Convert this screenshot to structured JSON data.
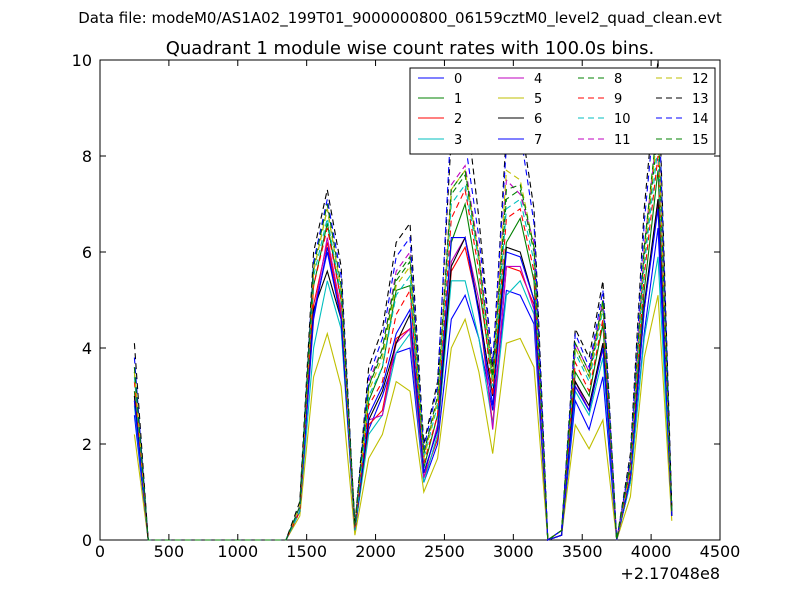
{
  "header": {
    "data_file": "Data file: modeM0/AS1A02_199T01_9000000800_06159cztM0_level2_quad_clean.evt"
  },
  "chart_data": {
    "type": "line",
    "title": "Quadrant 1 module wise count rates with 100.0s bins.",
    "xlabel": "",
    "ylabel": "",
    "x_offset_label": "+2.17048e8",
    "xlim": [
      0,
      4500
    ],
    "ylim": [
      0,
      10
    ],
    "xticks": [
      "0",
      "500",
      "1000",
      "1500",
      "2000",
      "2500",
      "3000",
      "3500",
      "4000",
      "4500"
    ],
    "yticks": [
      "0",
      "2",
      "4",
      "6",
      "8",
      "10"
    ],
    "grid": false,
    "legend_placement": "top-right",
    "x": [
      250,
      350,
      1350,
      1450,
      1550,
      1650,
      1750,
      1850,
      1950,
      2050,
      2150,
      2250,
      2350,
      2450,
      2550,
      2650,
      2750,
      2850,
      2950,
      3050,
      3150,
      3250,
      3350,
      3450,
      3550,
      3650,
      3750,
      3850,
      3950,
      4050,
      4150
    ],
    "series": [
      {
        "name": "0",
        "color": "#0000ff",
        "dash": false,
        "values": [
          2.6,
          0,
          0,
          0.6,
          4.6,
          6.1,
          4.6,
          0.2,
          2.3,
          3.0,
          3.9,
          4.0,
          1.2,
          2.0,
          4.6,
          5.1,
          4.2,
          2.7,
          5.2,
          5.1,
          4.5,
          0,
          0.1,
          2.9,
          2.3,
          3.4,
          0,
          1.2,
          4.3,
          6.5,
          0.5
        ]
      },
      {
        "name": "1",
        "color": "#008000",
        "dash": false,
        "values": [
          3.1,
          0,
          0,
          0.6,
          5.3,
          6.6,
          5.0,
          0.3,
          2.9,
          3.6,
          5.2,
          5.3,
          1.5,
          2.6,
          6.2,
          7.0,
          5.3,
          3.3,
          6.2,
          6.7,
          5.4,
          0,
          0.2,
          3.5,
          3.0,
          4.5,
          0,
          1.5,
          5.2,
          7.7,
          0.6
        ]
      },
      {
        "name": "2",
        "color": "#ff0000",
        "dash": false,
        "values": [
          2.9,
          0,
          0,
          0.6,
          4.9,
          6.2,
          4.7,
          0.2,
          2.4,
          2.7,
          4.2,
          4.4,
          1.3,
          2.1,
          5.6,
          6.1,
          4.8,
          2.4,
          5.7,
          5.6,
          4.9,
          0,
          0.1,
          3.2,
          2.7,
          4.0,
          0,
          1.3,
          4.8,
          7.0,
          0.5
        ]
      },
      {
        "name": "3",
        "color": "#00bfbf",
        "dash": false,
        "values": [
          2.8,
          0,
          0,
          0.6,
          4.0,
          5.4,
          4.4,
          0.2,
          2.2,
          2.6,
          3.9,
          4.3,
          1.2,
          2.2,
          5.4,
          5.4,
          4.2,
          2.4,
          5.1,
          5.4,
          4.7,
          0,
          0.1,
          3.1,
          2.6,
          3.8,
          0,
          1.2,
          4.2,
          5.9,
          0.5
        ]
      },
      {
        "name": "4",
        "color": "#bf00bf",
        "dash": false,
        "values": [
          3.0,
          0,
          0,
          0.6,
          4.7,
          6.3,
          4.8,
          0.2,
          2.5,
          2.6,
          4.1,
          4.4,
          1.3,
          2.4,
          5.8,
          6.3,
          5.0,
          2.3,
          5.7,
          5.7,
          4.8,
          0,
          0.1,
          3.3,
          2.7,
          4.1,
          0,
          1.3,
          4.8,
          7.1,
          0.5
        ]
      },
      {
        "name": "5",
        "color": "#bfbf00",
        "dash": false,
        "values": [
          2.2,
          0,
          0,
          0.5,
          3.4,
          4.3,
          3.2,
          0.1,
          1.7,
          2.2,
          3.3,
          3.1,
          1.0,
          1.7,
          4.0,
          4.6,
          3.5,
          1.8,
          4.1,
          4.2,
          3.6,
          0,
          0.1,
          2.4,
          1.9,
          2.5,
          0,
          0.9,
          3.8,
          5.1,
          0.4
        ]
      },
      {
        "name": "6",
        "color": "#000000",
        "dash": false,
        "values": [
          3.0,
          0,
          0,
          0.6,
          4.8,
          5.6,
          4.6,
          0.2,
          2.5,
          3.1,
          4.1,
          4.7,
          1.4,
          2.3,
          5.7,
          6.3,
          4.8,
          3.0,
          6.1,
          6.0,
          5.0,
          0,
          0.1,
          3.3,
          2.8,
          4.1,
          0,
          1.3,
          4.9,
          7.1,
          0.5
        ]
      },
      {
        "name": "7",
        "color": "#0000ff",
        "dash": false,
        "values": [
          2.9,
          0,
          0,
          0.6,
          4.7,
          6.0,
          4.6,
          0.2,
          2.6,
          3.2,
          4.3,
          4.8,
          1.4,
          2.3,
          6.3,
          6.3,
          4.7,
          2.8,
          6.0,
          5.9,
          5.0,
          0,
          0.1,
          3.2,
          2.7,
          4.0,
          0,
          1.3,
          4.8,
          6.9,
          0.5
        ]
      },
      {
        "name": "8",
        "color": "#008000",
        "dash": true,
        "values": [
          3.5,
          0,
          0,
          0.7,
          5.6,
          6.9,
          5.2,
          0.3,
          3.2,
          3.9,
          5.4,
          5.8,
          1.8,
          2.9,
          7.2,
          7.6,
          5.9,
          3.4,
          7.1,
          7.3,
          6.0,
          0,
          0.2,
          4.0,
          3.4,
          4.9,
          0,
          1.6,
          5.9,
          8.5,
          0.6
        ]
      },
      {
        "name": "9",
        "color": "#ff0000",
        "dash": true,
        "values": [
          3.3,
          0,
          0,
          0.6,
          5.3,
          6.5,
          5.0,
          0.2,
          2.8,
          3.3,
          4.7,
          5.2,
          1.6,
          2.6,
          6.7,
          7.3,
          5.6,
          3.0,
          6.7,
          6.9,
          5.6,
          0,
          0.2,
          3.7,
          3.1,
          4.6,
          0,
          1.4,
          5.5,
          8.0,
          0.6
        ]
      },
      {
        "name": "10",
        "color": "#00bfbf",
        "dash": true,
        "values": [
          3.4,
          0,
          0,
          0.6,
          5.5,
          6.7,
          5.1,
          0.2,
          3.0,
          3.6,
          5.1,
          5.5,
          1.7,
          2.8,
          7.0,
          7.4,
          5.8,
          3.2,
          6.9,
          7.1,
          5.8,
          0,
          0.2,
          3.9,
          3.3,
          4.8,
          0,
          1.5,
          5.7,
          8.2,
          0.6
        ]
      },
      {
        "name": "11",
        "color": "#bf00bf",
        "dash": true,
        "values": [
          3.6,
          0,
          0,
          0.7,
          5.7,
          7.0,
          5.3,
          0.3,
          3.3,
          4.0,
          5.6,
          6.0,
          1.8,
          3.0,
          7.4,
          7.8,
          6.0,
          3.5,
          7.5,
          7.2,
          6.2,
          0,
          0.2,
          4.1,
          3.5,
          5.0,
          0,
          1.6,
          6.1,
          8.7,
          0.6
        ]
      },
      {
        "name": "12",
        "color": "#bfbf00",
        "dash": true,
        "values": [
          3.5,
          0,
          0,
          0.7,
          5.6,
          6.9,
          5.2,
          0.3,
          3.1,
          3.8,
          5.3,
          5.7,
          1.7,
          2.9,
          7.3,
          7.7,
          5.9,
          3.3,
          7.7,
          7.5,
          6.1,
          0,
          0.2,
          4.0,
          3.4,
          4.9,
          0,
          1.5,
          6.0,
          8.6,
          0.6
        ]
      },
      {
        "name": "13",
        "color": "#000000",
        "dash": true,
        "values": [
          4.1,
          0,
          0,
          0.8,
          6.0,
          7.3,
          5.7,
          0.3,
          3.6,
          4.4,
          6.2,
          6.6,
          2.0,
          3.3,
          8.4,
          9.2,
          6.7,
          3.6,
          8.5,
          8.8,
          6.9,
          0,
          0.2,
          4.4,
          3.8,
          5.4,
          0,
          1.8,
          6.9,
          10.0,
          0.7
        ]
      },
      {
        "name": "14",
        "color": "#0000ff",
        "dash": true,
        "values": [
          3.8,
          0,
          0,
          0.7,
          5.8,
          7.1,
          5.5,
          0.3,
          3.4,
          4.2,
          5.9,
          6.3,
          1.9,
          3.2,
          8.8,
          8.3,
          6.3,
          3.7,
          8.2,
          8.5,
          6.6,
          0,
          0.2,
          4.3,
          3.6,
          5.2,
          0,
          1.7,
          6.6,
          9.7,
          0.6
        ]
      },
      {
        "name": "15",
        "color": "#008000",
        "dash": true,
        "values": [
          3.6,
          0,
          0,
          0.7,
          5.7,
          7.0,
          5.3,
          0.3,
          3.2,
          4.0,
          5.5,
          5.9,
          1.8,
          3.0,
          7.3,
          7.7,
          5.9,
          3.4,
          7.3,
          7.4,
          6.1,
          0,
          0.2,
          4.1,
          3.5,
          5.0,
          0,
          1.6,
          6.1,
          8.8,
          0.6
        ]
      }
    ]
  }
}
